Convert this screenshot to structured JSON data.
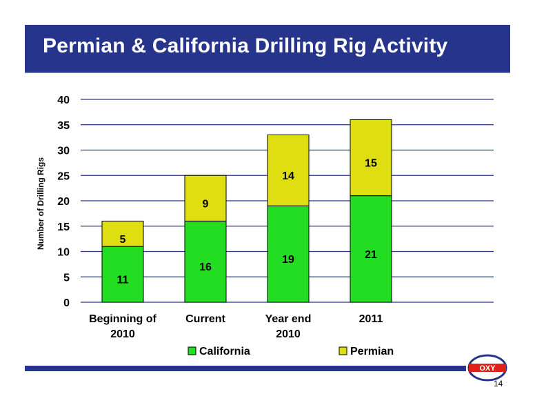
{
  "slide": {
    "title": "Permian & California Drilling Rig Activity",
    "page_number": "14",
    "logo_text": "OXY"
  },
  "colors": {
    "title_bar": "#27348b",
    "california": "#22dd22",
    "permian": "#dede10",
    "gridline": "#27348b",
    "rule": "#27348b",
    "logo_red": "#e0201b"
  },
  "chart_data": {
    "type": "bar",
    "stacked": true,
    "categories": [
      [
        "Beginning of",
        "2010"
      ],
      [
        "Current"
      ],
      [
        "Year end",
        "2010"
      ],
      [
        "2011"
      ]
    ],
    "series": [
      {
        "name": "California",
        "values": [
          11,
          16,
          19,
          21
        ],
        "color": "#22dd22"
      },
      {
        "name": "Permian",
        "values": [
          5,
          9,
          14,
          15
        ],
        "color": "#dede10"
      }
    ],
    "ylabel": "Number of Drilling Rigs",
    "ylim": [
      0,
      40
    ],
    "yticks": [
      0,
      5,
      10,
      15,
      20,
      25,
      30,
      35,
      40
    ],
    "grid": true,
    "legend": "bottom",
    "data_labels": true
  }
}
